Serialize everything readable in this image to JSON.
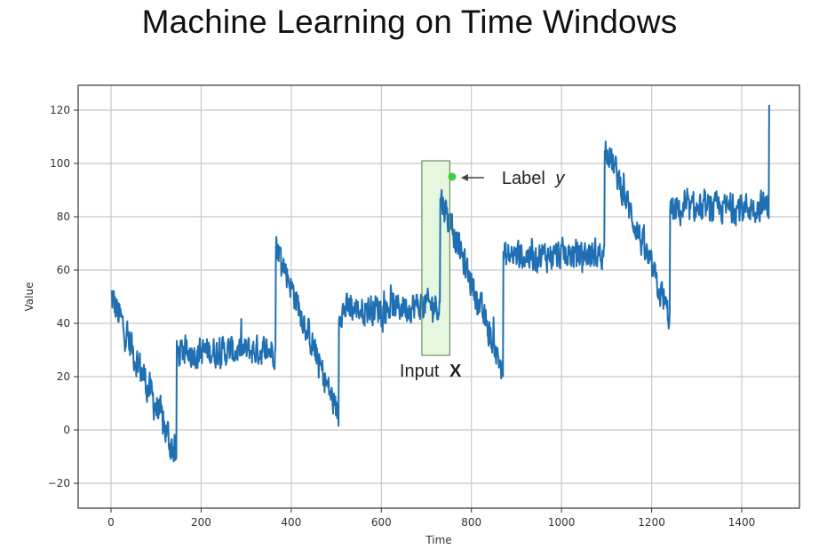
{
  "page": {
    "title": "Machine Learning on Time Windows"
  },
  "chart_data": {
    "type": "line",
    "title": "Machine Learning on Time Windows",
    "xlabel": "Time",
    "ylabel": "Value",
    "xlim": [
      -75,
      1535
    ],
    "ylim": [
      -29,
      129
    ],
    "xticks": [
      0,
      200,
      400,
      600,
      800,
      1000,
      1200,
      1400
    ],
    "yticks": [
      -20,
      0,
      20,
      40,
      60,
      80,
      100,
      120
    ],
    "grid": true,
    "line_color": "#1f6fb2",
    "series": [
      {
        "name": "series",
        "segments": [
          {
            "x": [
              0,
              145
            ],
            "y": [
              50,
              -10
            ],
            "noise": 6
          },
          {
            "x": [
              146,
              365
            ],
            "y": [
              29,
              30
            ],
            "noise": 5
          },
          {
            "x": [
              366,
              505
            ],
            "y": [
              70,
              5
            ],
            "noise": 5
          },
          {
            "x": [
              506,
              730
            ],
            "y": [
              45,
              47
            ],
            "noise": 5
          },
          {
            "x": [
              731,
              870
            ],
            "y": [
              88,
              22
            ],
            "noise": 5
          },
          {
            "x": [
              871,
              1095
            ],
            "y": [
              65,
              66
            ],
            "noise": 5
          },
          {
            "x": [
              1096,
              1240
            ],
            "y": [
              108,
              42
            ],
            "noise": 5
          },
          {
            "x": [
              1241,
              1460
            ],
            "y": [
              82,
              84
            ],
            "noise": 5
          }
        ],
        "final_spike": {
          "x": 1461,
          "y": 122
        }
      }
    ],
    "annotations": {
      "window": {
        "x_start": 690,
        "x_end": 752,
        "y_bottom": 28,
        "y_top": 101,
        "fill": "#e6f7df",
        "stroke": "#6f8f5c",
        "label": "Input",
        "label_bold": "X"
      },
      "target_point": {
        "x": 757,
        "y": 95,
        "color": "#3bd13b",
        "label": "Label",
        "label_italic": "y"
      }
    }
  }
}
